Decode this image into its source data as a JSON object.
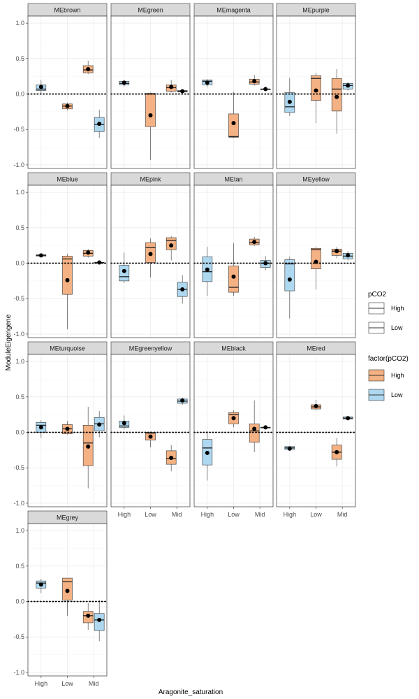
{
  "chart_data": {
    "type": "box",
    "xlabel": "Aragonite_saturation",
    "ylabel": "ModuleEigengene",
    "categories": [
      "High",
      "Low",
      "Mid"
    ],
    "y_ticks": [
      1.0,
      0.5,
      0.0,
      -0.5,
      -1.0
    ],
    "y_tick_labels": [
      "1.0",
      "0.5",
      "0.0",
      "-0.5",
      "-1.0"
    ],
    "ylim": [
      -1.05,
      1.1
    ],
    "reference_line": 0,
    "colors": {
      "High": "#f4b183",
      "Low": "#aed8f0",
      "outline": "#333333",
      "strip_bg": "#d9d9d9",
      "grid": "#ebebeb",
      "point": "#000000"
    },
    "legend": {
      "pco2_title": "pCO2",
      "pco2_items": [
        "High",
        "Low"
      ],
      "factor_title": "factor(pCO2)",
      "factor_items": [
        "High",
        "Low"
      ]
    },
    "panels": [
      {
        "name": "MEbrown",
        "boxes": [
          {
            "x": "High",
            "pco2": "Low",
            "lw": 0.0,
            "q1": 0.05,
            "med": 0.07,
            "q3": 0.13,
            "uw": 0.2,
            "mean": 0.1
          },
          {
            "x": "Low",
            "pco2": "High",
            "lw": -0.23,
            "q1": -0.21,
            "med": -0.17,
            "q3": -0.14,
            "uw": -0.12,
            "mean": -0.17
          },
          {
            "x": "Mid",
            "pco2": "High",
            "lw": 0.28,
            "q1": 0.3,
            "med": 0.34,
            "q3": 0.4,
            "uw": 0.47,
            "mean": 0.35
          },
          {
            "x": "Mid",
            "pco2": "Low",
            "lw": -0.62,
            "q1": -0.53,
            "med": -0.43,
            "q3": -0.33,
            "uw": -0.22,
            "mean": -0.42
          }
        ]
      },
      {
        "name": "MEgreen",
        "boxes": [
          {
            "x": "High",
            "pco2": "Low",
            "lw": 0.1,
            "q1": 0.13,
            "med": 0.15,
            "q3": 0.18,
            "uw": 0.2,
            "mean": 0.16
          },
          {
            "x": "Low",
            "pco2": "High",
            "lw": -0.93,
            "q1": -0.46,
            "med": 0.0,
            "q3": 0.01,
            "uw": 0.02,
            "mean": -0.3
          },
          {
            "x": "Mid",
            "pco2": "High",
            "lw": 0.02,
            "q1": 0.04,
            "med": 0.09,
            "q3": 0.13,
            "uw": 0.2,
            "mean": 0.1
          },
          {
            "x": "Mid",
            "pco2": "Low",
            "lw": 0.02,
            "q1": 0.03,
            "med": 0.04,
            "q3": 0.05,
            "uw": 0.06,
            "mean": 0.04
          }
        ]
      },
      {
        "name": "MEmagenta",
        "boxes": [
          {
            "x": "High",
            "pco2": "Low",
            "lw": 0.1,
            "q1": 0.13,
            "med": 0.18,
            "q3": 0.2,
            "uw": 0.21,
            "mean": 0.16
          },
          {
            "x": "Low",
            "pco2": "High",
            "lw": -0.62,
            "q1": -0.61,
            "med": -0.6,
            "q3": -0.28,
            "uw": 0.03,
            "mean": -0.41
          },
          {
            "x": "Mid",
            "pco2": "High",
            "lw": 0.12,
            "q1": 0.14,
            "med": 0.17,
            "q3": 0.21,
            "uw": 0.27,
            "mean": 0.18
          },
          {
            "x": "Mid",
            "pco2": "Low",
            "lw": 0.06,
            "q1": 0.06,
            "med": 0.07,
            "q3": 0.07,
            "uw": 0.08,
            "mean": 0.07
          }
        ]
      },
      {
        "name": "MEpurple",
        "boxes": [
          {
            "x": "High",
            "pco2": "Low",
            "lw": -0.31,
            "q1": -0.26,
            "med": -0.18,
            "q3": 0.02,
            "uw": 0.23,
            "mean": -0.11
          },
          {
            "x": "Low",
            "pco2": "High",
            "lw": -0.41,
            "q1": -0.09,
            "med": 0.22,
            "q3": 0.26,
            "uw": 0.3,
            "mean": 0.05
          },
          {
            "x": "Mid",
            "pco2": "High",
            "lw": -0.56,
            "q1": -0.24,
            "med": 0.07,
            "q3": 0.22,
            "uw": 0.35,
            "mean": -0.04
          },
          {
            "x": "Mid",
            "pco2": "Low",
            "lw": 0.05,
            "q1": 0.07,
            "med": 0.12,
            "q3": 0.15,
            "uw": 0.17,
            "mean": 0.12
          }
        ]
      },
      {
        "name": "MEblue",
        "boxes": [
          {
            "x": "High",
            "pco2": "Low",
            "lw": 0.1,
            "q1": 0.1,
            "med": 0.11,
            "q3": 0.12,
            "uw": 0.13,
            "mean": 0.11
          },
          {
            "x": "Low",
            "pco2": "High",
            "lw": -0.93,
            "q1": -0.44,
            "med": 0.06,
            "q3": 0.1,
            "uw": 0.13,
            "mean": -0.24
          },
          {
            "x": "Mid",
            "pco2": "High",
            "lw": 0.08,
            "q1": 0.1,
            "med": 0.14,
            "q3": 0.18,
            "uw": 0.2,
            "mean": 0.15
          },
          {
            "x": "Mid",
            "pco2": "Low",
            "lw": 0.0,
            "q1": 0.0,
            "med": 0.01,
            "q3": 0.01,
            "uw": 0.02,
            "mean": 0.01
          }
        ]
      },
      {
        "name": "MEpink",
        "boxes": [
          {
            "x": "High",
            "pco2": "Low",
            "lw": -0.28,
            "q1": -0.25,
            "med": -0.19,
            "q3": -0.03,
            "uw": 0.15,
            "mean": -0.11
          },
          {
            "x": "Low",
            "pco2": "High",
            "lw": -0.2,
            "q1": 0.01,
            "med": 0.22,
            "q3": 0.29,
            "uw": 0.35,
            "mean": 0.13
          },
          {
            "x": "Mid",
            "pco2": "High",
            "lw": 0.04,
            "q1": 0.19,
            "med": 0.32,
            "q3": 0.36,
            "uw": 0.38,
            "mean": 0.25
          },
          {
            "x": "Mid",
            "pco2": "Low",
            "lw": -0.57,
            "q1": -0.47,
            "med": -0.37,
            "q3": -0.27,
            "uw": -0.17,
            "mean": -0.37
          }
        ]
      },
      {
        "name": "MEtan",
        "boxes": [
          {
            "x": "High",
            "pco2": "Low",
            "lw": -0.46,
            "q1": -0.26,
            "med": -0.12,
            "q3": 0.09,
            "uw": 0.23,
            "mean": -0.09
          },
          {
            "x": "Low",
            "pco2": "High",
            "lw": -0.46,
            "q1": -0.41,
            "med": -0.34,
            "q3": -0.04,
            "uw": 0.28,
            "mean": -0.19
          },
          {
            "x": "Mid",
            "pco2": "High",
            "lw": 0.24,
            "q1": 0.26,
            "med": 0.29,
            "q3": 0.34,
            "uw": 0.37,
            "mean": 0.3
          },
          {
            "x": "Mid",
            "pco2": "Low",
            "lw": -0.1,
            "q1": -0.06,
            "med": 0.0,
            "q3": 0.04,
            "uw": 0.1,
            "mean": 0.0
          }
        ]
      },
      {
        "name": "MEyellow",
        "boxes": [
          {
            "x": "High",
            "pco2": "Low",
            "lw": -0.78,
            "q1": -0.39,
            "med": -0.01,
            "q3": 0.05,
            "uw": 0.09,
            "mean": -0.23
          },
          {
            "x": "Low",
            "pco2": "High",
            "lw": -0.37,
            "q1": -0.08,
            "med": 0.19,
            "q3": 0.21,
            "uw": 0.23,
            "mean": 0.02
          },
          {
            "x": "Mid",
            "pco2": "High",
            "lw": 0.07,
            "q1": 0.11,
            "med": 0.17,
            "q3": 0.2,
            "uw": 0.23,
            "mean": 0.17
          },
          {
            "x": "Mid",
            "pco2": "Low",
            "lw": 0.04,
            "q1": 0.06,
            "med": 0.1,
            "q3": 0.14,
            "uw": 0.17,
            "mean": 0.11
          }
        ]
      },
      {
        "name": "MEturquoise",
        "boxes": [
          {
            "x": "High",
            "pco2": "Low",
            "lw": -0.08,
            "q1": 0.0,
            "med": 0.1,
            "q3": 0.14,
            "uw": 0.17,
            "mean": 0.07
          },
          {
            "x": "Low",
            "pco2": "High",
            "lw": -0.03,
            "q1": -0.02,
            "med": 0.05,
            "q3": 0.11,
            "uw": 0.16,
            "mean": 0.05
          },
          {
            "x": "Mid",
            "pco2": "High",
            "lw": -0.79,
            "q1": -0.47,
            "med": -0.15,
            "q3": 0.1,
            "uw": 0.36,
            "mean": -0.2
          },
          {
            "x": "Mid",
            "pco2": "Low",
            "lw": -0.07,
            "q1": 0.02,
            "med": 0.12,
            "q3": 0.21,
            "uw": 0.3,
            "mean": 0.11
          }
        ]
      },
      {
        "name": "MEgreenyellow",
        "boxes": [
          {
            "x": "High",
            "pco2": "Low",
            "lw": 0.04,
            "q1": 0.07,
            "med": 0.09,
            "q3": 0.16,
            "uw": 0.24,
            "mean": 0.13
          },
          {
            "x": "Low",
            "pco2": "High",
            "lw": -0.21,
            "q1": -0.11,
            "med": -0.01,
            "q3": 0.0,
            "uw": 0.01,
            "mean": -0.06
          },
          {
            "x": "Mid",
            "pco2": "High",
            "lw": -0.55,
            "q1": -0.45,
            "med": -0.37,
            "q3": -0.26,
            "uw": -0.18,
            "mean": -0.36
          },
          {
            "x": "Mid",
            "pco2": "Low",
            "lw": 0.39,
            "q1": 0.41,
            "med": 0.44,
            "q3": 0.47,
            "uw": 0.49,
            "mean": 0.45
          }
        ]
      },
      {
        "name": "MEblack",
        "boxes": [
          {
            "x": "High",
            "pco2": "Low",
            "lw": -0.68,
            "q1": -0.46,
            "med": -0.22,
            "q3": -0.1,
            "uw": 0.02,
            "mean": -0.29
          },
          {
            "x": "Low",
            "pco2": "High",
            "lw": 0.07,
            "q1": 0.12,
            "med": 0.25,
            "q3": 0.28,
            "uw": 0.31,
            "mean": 0.2
          },
          {
            "x": "Mid",
            "pco2": "High",
            "lw": -0.28,
            "q1": -0.14,
            "med": 0.02,
            "q3": 0.12,
            "uw": 0.45,
            "mean": 0.05
          },
          {
            "x": "Mid",
            "pco2": "Low",
            "lw": 0.05,
            "q1": 0.06,
            "med": 0.07,
            "q3": 0.07,
            "uw": 0.08,
            "mean": 0.07
          }
        ]
      },
      {
        "name": "MEred",
        "boxes": [
          {
            "x": "High",
            "pco2": "Low",
            "lw": -0.25,
            "q1": -0.24,
            "med": -0.22,
            "q3": -0.2,
            "uw": -0.19,
            "mean": -0.23
          },
          {
            "x": "Low",
            "pco2": "High",
            "lw": 0.31,
            "q1": 0.33,
            "med": 0.36,
            "q3": 0.39,
            "uw": 0.46,
            "mean": 0.37
          },
          {
            "x": "Mid",
            "pco2": "High",
            "lw": -0.48,
            "q1": -0.38,
            "med": -0.28,
            "q3": -0.18,
            "uw": -0.08,
            "mean": -0.28
          },
          {
            "x": "Mid",
            "pco2": "Low",
            "lw": 0.17,
            "q1": 0.19,
            "med": 0.2,
            "q3": 0.22,
            "uw": 0.23,
            "mean": 0.2
          }
        ]
      },
      {
        "name": "MEgrey",
        "boxes": [
          {
            "x": "High",
            "pco2": "Low",
            "lw": 0.12,
            "q1": 0.19,
            "med": 0.26,
            "q3": 0.29,
            "uw": 0.32,
            "mean": 0.24
          },
          {
            "x": "Low",
            "pco2": "High",
            "lw": -0.2,
            "q1": 0.02,
            "med": 0.28,
            "q3": 0.33,
            "uw": 0.33,
            "mean": 0.15
          },
          {
            "x": "Mid",
            "pco2": "High",
            "lw": -0.4,
            "q1": -0.3,
            "med": -0.2,
            "q3": -0.14,
            "uw": -0.02,
            "mean": -0.2
          },
          {
            "x": "Mid",
            "pco2": "Low",
            "lw": -0.56,
            "q1": -0.41,
            "med": -0.26,
            "q3": -0.17,
            "uw": 0.02,
            "mean": -0.26
          }
        ]
      }
    ]
  }
}
